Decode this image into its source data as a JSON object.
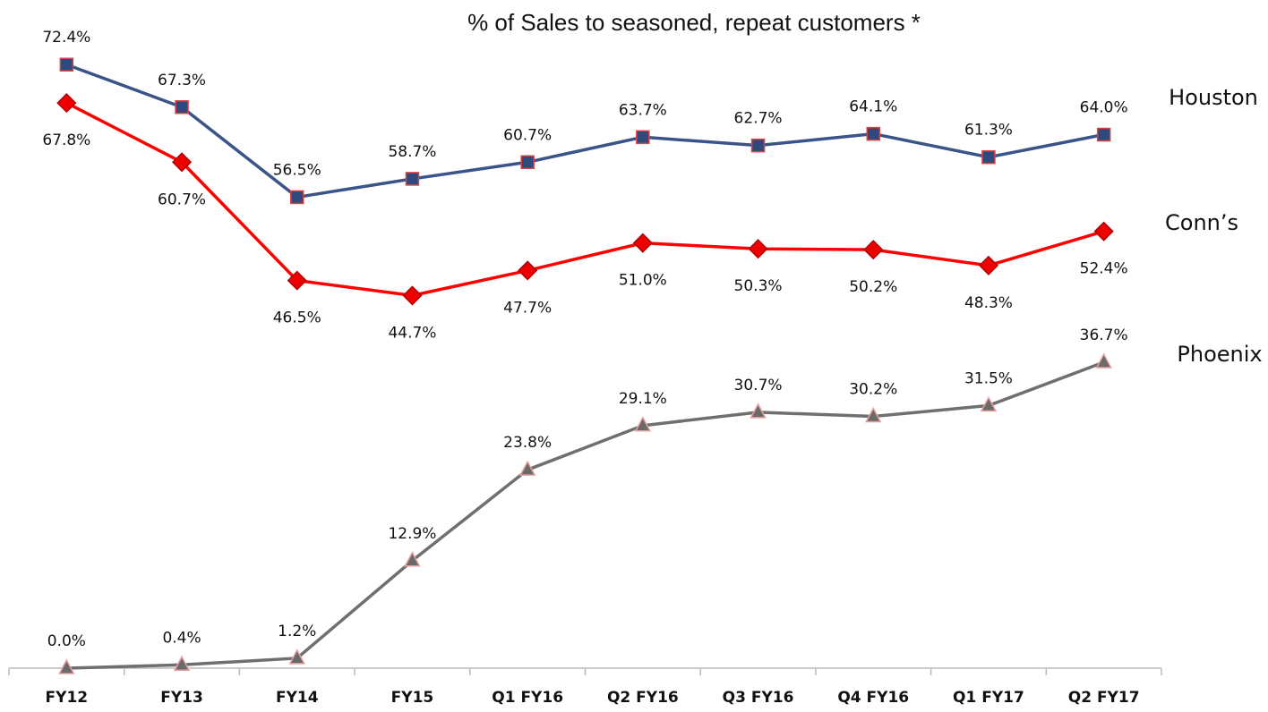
{
  "chart_data": {
    "type": "line",
    "title": "% of Sales to seasoned, repeat customers *",
    "categories": [
      "FY12",
      "FY13",
      "FY14",
      "FY15",
      "Q1 FY16",
      "Q2 FY16",
      "Q3 FY16",
      "Q4 FY16",
      "Q1 FY17",
      "Q2 FY17"
    ],
    "ylim": [
      0,
      80
    ],
    "series": [
      {
        "name": "Houston",
        "color": "#3b5488",
        "marker": "square",
        "marker_fill": "#2e4a7d",
        "marker_stroke": "#e04040",
        "values": [
          72.4,
          67.3,
          56.5,
          58.7,
          60.7,
          63.7,
          62.7,
          64.1,
          61.3,
          64.0
        ],
        "value_labels": [
          "72.4%",
          "67.3%",
          "56.5%",
          "58.7%",
          "60.7%",
          "63.7%",
          "62.7%",
          "64.1%",
          "61.3%",
          "64.0%"
        ]
      },
      {
        "name": "Conn’s",
        "color": "#ff0000",
        "marker": "diamond",
        "marker_fill": "#ee0000",
        "marker_stroke": "#b00000",
        "values": [
          67.8,
          60.7,
          46.5,
          44.7,
          47.7,
          51.0,
          50.3,
          50.2,
          48.3,
          52.4
        ],
        "value_labels": [
          "67.8%",
          "60.7%",
          "46.5%",
          "44.7%",
          "47.7%",
          "51.0%",
          "50.3%",
          "50.2%",
          "48.3%",
          "52.4%"
        ]
      },
      {
        "name": "Phoenix",
        "color": "#6f6f6f",
        "marker": "triangle",
        "marker_fill": "#6a6a6a",
        "marker_stroke": "#e8a0a0",
        "values": [
          0.0,
          0.4,
          1.2,
          12.9,
          23.8,
          29.1,
          30.7,
          30.2,
          31.5,
          36.7
        ],
        "value_labels": [
          "0.0%",
          "0.4%",
          "1.2%",
          "12.9%",
          "23.8%",
          "29.1%",
          "30.7%",
          "30.2%",
          "31.5%",
          "36.7%"
        ]
      }
    ]
  }
}
